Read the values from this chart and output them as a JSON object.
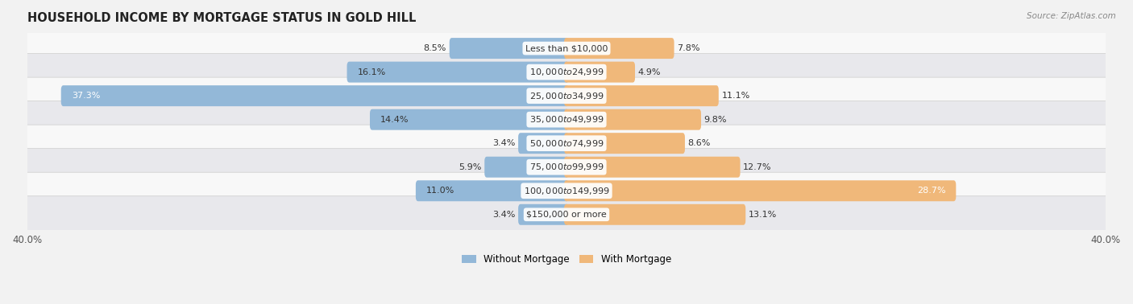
{
  "title": "HOUSEHOLD INCOME BY MORTGAGE STATUS IN GOLD HILL",
  "source": "Source: ZipAtlas.com",
  "categories": [
    "Less than $10,000",
    "$10,000 to $24,999",
    "$25,000 to $34,999",
    "$35,000 to $49,999",
    "$50,000 to $74,999",
    "$75,000 to $99,999",
    "$100,000 to $149,999",
    "$150,000 or more"
  ],
  "without_mortgage": [
    8.5,
    16.1,
    37.3,
    14.4,
    3.4,
    5.9,
    11.0,
    3.4
  ],
  "with_mortgage": [
    7.8,
    4.9,
    11.1,
    9.8,
    8.6,
    12.7,
    28.7,
    13.1
  ],
  "color_without": "#93b8d8",
  "color_with": "#f0b87a",
  "axis_max": 40.0,
  "axis_min": -40.0,
  "background_color": "#f2f2f2",
  "row_bg_light": "#f8f8f8",
  "row_bg_dark": "#e8e8ec",
  "legend_label_without": "Without Mortgage",
  "legend_label_with": "With Mortgage",
  "title_fontsize": 10.5,
  "label_fontsize": 8,
  "category_fontsize": 8,
  "tick_fontsize": 8.5
}
